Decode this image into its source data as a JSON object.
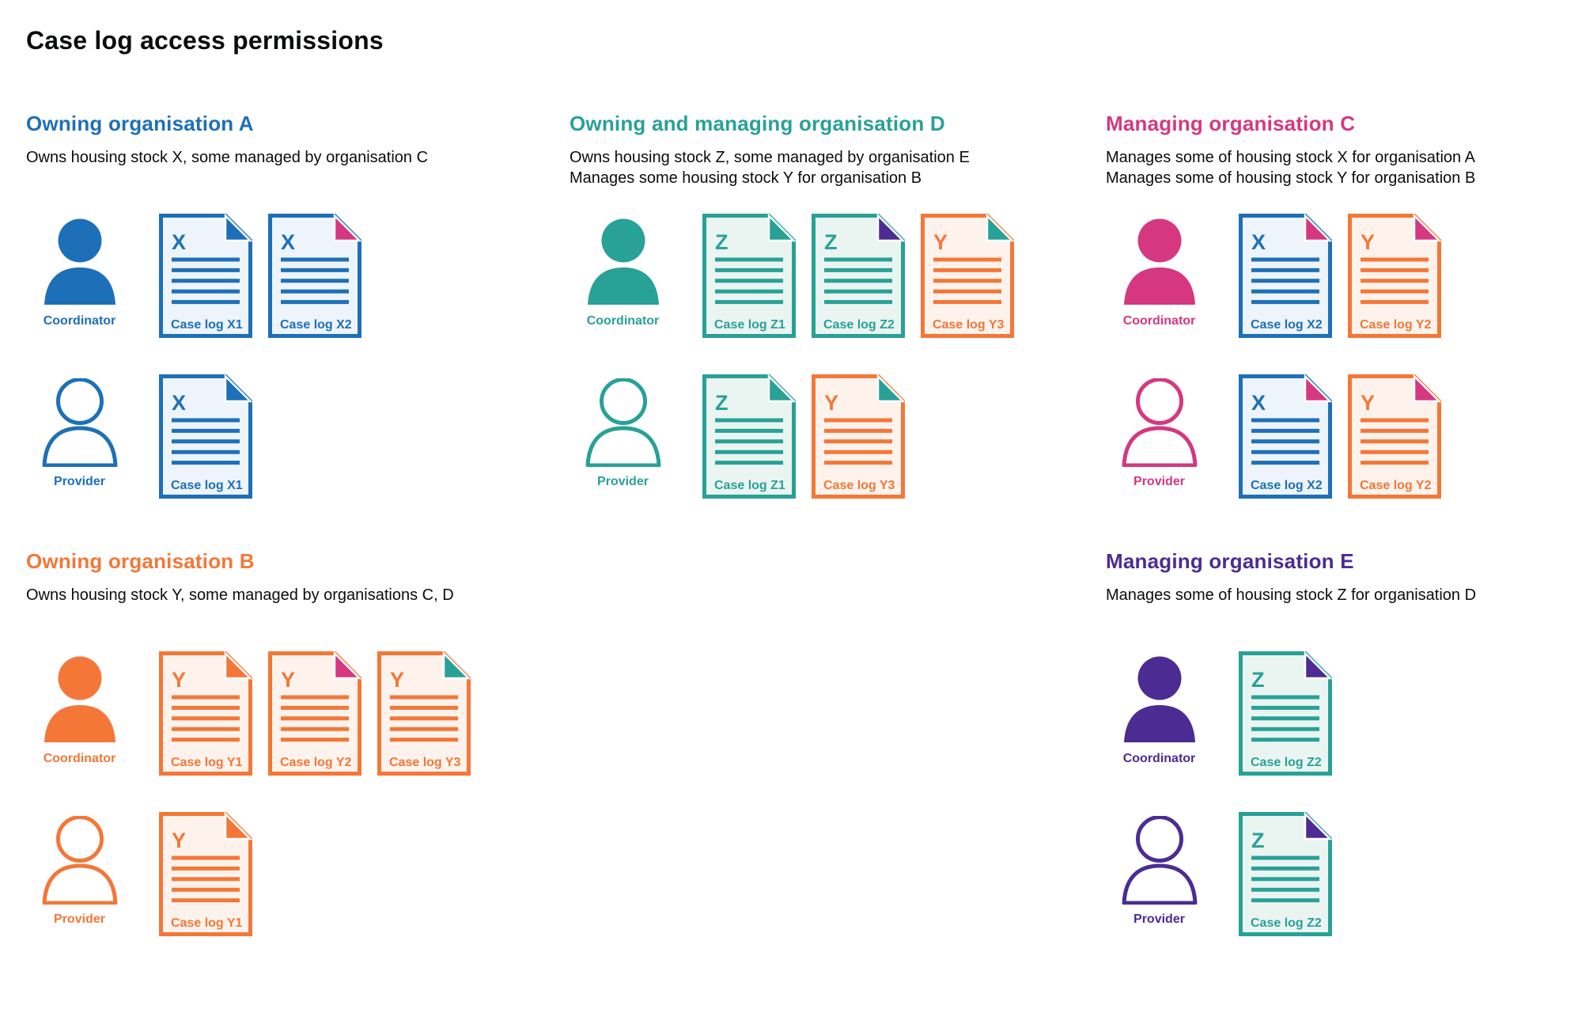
{
  "title": "Case log access permissions",
  "colors": {
    "blue": "#1d70b8",
    "teal": "#28a197",
    "pink": "#d53880",
    "orange": "#f47738",
    "purple": "#4c2c92",
    "text": "#0b0c0c",
    "blue_doc_bg": "#eef4fb",
    "teal_doc_bg": "#eaf5f2",
    "orange_doc_bg": "#fdf3ec"
  },
  "sections": [
    {
      "id": "org-a",
      "heading": "Owning organisation A",
      "color": "blue",
      "description": [
        "Owns housing stock X, some managed by organisation C"
      ],
      "rows": [
        {
          "role": "Coordinator",
          "person_style": "filled",
          "docs": [
            {
              "letter": "X",
              "label": "Case log X1",
              "doc_color": "blue",
              "fold_color": "blue"
            },
            {
              "letter": "X",
              "label": "Case log X2",
              "doc_color": "blue",
              "fold_color": "pink"
            }
          ]
        },
        {
          "role": "Provider",
          "person_style": "outline",
          "docs": [
            {
              "letter": "X",
              "label": "Case log X1",
              "doc_color": "blue",
              "fold_color": "blue"
            }
          ]
        }
      ]
    },
    {
      "id": "org-d",
      "heading": "Owning and managing organisation D",
      "color": "teal",
      "description": [
        "Owns housing stock Z, some managed by organisation E",
        "Manages some housing stock Y for organisation B"
      ],
      "rows": [
        {
          "role": "Coordinator",
          "person_style": "filled",
          "docs": [
            {
              "letter": "Z",
              "label": "Case log Z1",
              "doc_color": "teal",
              "fold_color": "teal"
            },
            {
              "letter": "Z",
              "label": "Case log Z2",
              "doc_color": "teal",
              "fold_color": "purple"
            },
            {
              "letter": "Y",
              "label": "Case log Y3",
              "doc_color": "orange",
              "fold_color": "teal"
            }
          ]
        },
        {
          "role": "Provider",
          "person_style": "outline",
          "docs": [
            {
              "letter": "Z",
              "label": "Case log Z1",
              "doc_color": "teal",
              "fold_color": "teal"
            },
            {
              "letter": "Y",
              "label": "Case log Y3",
              "doc_color": "orange",
              "fold_color": "teal"
            }
          ]
        }
      ]
    },
    {
      "id": "org-c",
      "heading": "Managing organisation C",
      "color": "pink",
      "description": [
        "Manages some of housing stock X for organisation A",
        "Manages some of housing stock Y for organisation B"
      ],
      "rows": [
        {
          "role": "Coordinator",
          "person_style": "filled",
          "docs": [
            {
              "letter": "X",
              "label": "Case log X2",
              "doc_color": "blue",
              "fold_color": "pink"
            },
            {
              "letter": "Y",
              "label": "Case log Y2",
              "doc_color": "orange",
              "fold_color": "pink"
            }
          ]
        },
        {
          "role": "Provider",
          "person_style": "outline",
          "docs": [
            {
              "letter": "X",
              "label": "Case log X2",
              "doc_color": "blue",
              "fold_color": "pink"
            },
            {
              "letter": "Y",
              "label": "Case log Y2",
              "doc_color": "orange",
              "fold_color": "pink"
            }
          ]
        }
      ]
    },
    {
      "id": "org-b",
      "heading": "Owning organisation B",
      "color": "orange",
      "description": [
        "Owns housing stock Y, some managed by organisations C, D"
      ],
      "rows": [
        {
          "role": "Coordinator",
          "person_style": "filled",
          "docs": [
            {
              "letter": "Y",
              "label": "Case log Y1",
              "doc_color": "orange",
              "fold_color": "orange"
            },
            {
              "letter": "Y",
              "label": "Case log Y2",
              "doc_color": "orange",
              "fold_color": "pink"
            },
            {
              "letter": "Y",
              "label": "Case log Y3",
              "doc_color": "orange",
              "fold_color": "teal"
            }
          ]
        },
        {
          "role": "Provider",
          "person_style": "outline",
          "docs": [
            {
              "letter": "Y",
              "label": "Case log Y1",
              "doc_color": "orange",
              "fold_color": "orange"
            }
          ]
        }
      ]
    },
    {
      "id": "org-e",
      "heading": "Managing organisation E",
      "color": "purple",
      "description": [
        "Manages some of housing stock Z for organisation D"
      ],
      "rows": [
        {
          "role": "Coordinator",
          "person_style": "filled",
          "docs": [
            {
              "letter": "Z",
              "label": "Case log Z2",
              "doc_color": "teal",
              "fold_color": "purple"
            }
          ]
        },
        {
          "role": "Provider",
          "person_style": "outline",
          "docs": [
            {
              "letter": "Z",
              "label": "Case log Z2",
              "doc_color": "teal",
              "fold_color": "purple"
            }
          ]
        }
      ]
    }
  ]
}
